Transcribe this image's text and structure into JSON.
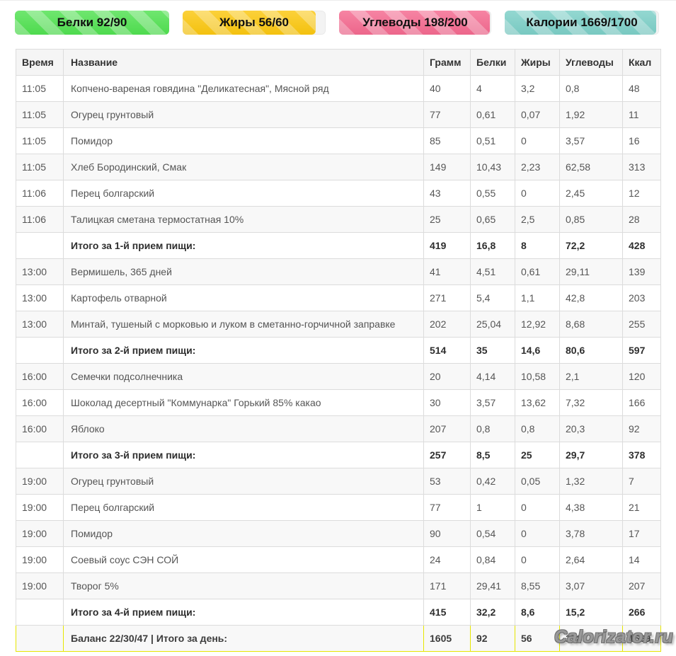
{
  "summary": {
    "badges": [
      {
        "name": "protein",
        "label": "Белки 92/90",
        "value": 92,
        "goal": 90,
        "percent": 100,
        "color": "#50e150"
      },
      {
        "name": "fat",
        "label": "Жиры 56/60",
        "value": 56,
        "goal": 60,
        "percent": 93,
        "color": "#fbc70f"
      },
      {
        "name": "carbs",
        "label": "Углеводы 198/200",
        "value": 198,
        "goal": 200,
        "percent": 99,
        "color": "#f4698f"
      },
      {
        "name": "calories",
        "label": "Калории 1669/1700",
        "value": 1669,
        "goal": 1700,
        "percent": 98,
        "color": "#7ccfc7"
      }
    ],
    "track_color": "#f3f3f3"
  },
  "table": {
    "columns": [
      "Время",
      "Название",
      "Грамм",
      "Белки",
      "Жиры",
      "Углеводы",
      "Ккал"
    ],
    "rows": [
      {
        "type": "item",
        "time": "11:05",
        "name": "Копчено-вареная говядина \"Деликатесная\", Мясной ряд",
        "grams": "40",
        "protein": "4",
        "fat": "3,2",
        "carbs": "0,8",
        "kcal": "48"
      },
      {
        "type": "item",
        "time": "11:05",
        "name": "Огурец грунтовый",
        "grams": "77",
        "protein": "0,61",
        "fat": "0,07",
        "carbs": "1,92",
        "kcal": "11"
      },
      {
        "type": "item",
        "time": "11:05",
        "name": "Помидор",
        "grams": "85",
        "protein": "0,51",
        "fat": "0",
        "carbs": "3,57",
        "kcal": "16"
      },
      {
        "type": "item",
        "time": "11:05",
        "name": "Хлеб Бородинский, Смак",
        "grams": "149",
        "protein": "10,43",
        "fat": "2,23",
        "carbs": "62,58",
        "kcal": "313"
      },
      {
        "type": "item",
        "time": "11:06",
        "name": "Перец болгарский",
        "grams": "43",
        "protein": "0,55",
        "fat": "0",
        "carbs": "2,45",
        "kcal": "12"
      },
      {
        "type": "item",
        "time": "11:06",
        "name": "Талицкая сметана термостатная 10%",
        "grams": "25",
        "protein": "0,65",
        "fat": "2,5",
        "carbs": "0,85",
        "kcal": "28"
      },
      {
        "type": "subtotal",
        "time": "",
        "name": "Итого за 1-й прием пищи:",
        "grams": "419",
        "protein": "16,8",
        "fat": "8",
        "carbs": "72,2",
        "kcal": "428"
      },
      {
        "type": "item",
        "time": "13:00",
        "name": "Вермишель, 365 дней",
        "grams": "41",
        "protein": "4,51",
        "fat": "0,61",
        "carbs": "29,11",
        "kcal": "139"
      },
      {
        "type": "item",
        "time": "13:00",
        "name": "Картофель отварной",
        "grams": "271",
        "protein": "5,4",
        "fat": "1,1",
        "carbs": "42,8",
        "kcal": "203"
      },
      {
        "type": "item",
        "time": "13:00",
        "name": "Минтай, тушеный с морковью и луком в сметанно-горчичной заправке",
        "grams": "202",
        "protein": "25,04",
        "fat": "12,92",
        "carbs": "8,68",
        "kcal": "255"
      },
      {
        "type": "subtotal",
        "time": "",
        "name": "Итого за 2-й прием пищи:",
        "grams": "514",
        "protein": "35",
        "fat": "14,6",
        "carbs": "80,6",
        "kcal": "597"
      },
      {
        "type": "item",
        "time": "16:00",
        "name": "Семечки подсолнечника",
        "grams": "20",
        "protein": "4,14",
        "fat": "10,58",
        "carbs": "2,1",
        "kcal": "120"
      },
      {
        "type": "item",
        "time": "16:00",
        "name": "Шоколад десертный \"Коммунарка\" Горький 85% какао",
        "grams": "30",
        "protein": "3,57",
        "fat": "13,62",
        "carbs": "7,32",
        "kcal": "166"
      },
      {
        "type": "item",
        "time": "16:00",
        "name": "Яблоко",
        "grams": "207",
        "protein": "0,8",
        "fat": "0,8",
        "carbs": "20,3",
        "kcal": "92"
      },
      {
        "type": "subtotal",
        "time": "",
        "name": "Итого за 3-й прием пищи:",
        "grams": "257",
        "protein": "8,5",
        "fat": "25",
        "carbs": "29,7",
        "kcal": "378"
      },
      {
        "type": "item",
        "time": "19:00",
        "name": "Огурец грунтовый",
        "grams": "53",
        "protein": "0,42",
        "fat": "0,05",
        "carbs": "1,32",
        "kcal": "7"
      },
      {
        "type": "item",
        "time": "19:00",
        "name": "Перец болгарский",
        "grams": "77",
        "protein": "1",
        "fat": "0",
        "carbs": "4,38",
        "kcal": "21"
      },
      {
        "type": "item",
        "time": "19:00",
        "name": "Помидор",
        "grams": "90",
        "protein": "0,54",
        "fat": "0",
        "carbs": "3,78",
        "kcal": "17"
      },
      {
        "type": "item",
        "time": "19:00",
        "name": "Соевый соус СЭН СОЙ",
        "grams": "24",
        "protein": "0,84",
        "fat": "0",
        "carbs": "2,64",
        "kcal": "14"
      },
      {
        "type": "item",
        "time": "19:00",
        "name": "Творог 5%",
        "grams": "171",
        "protein": "29,41",
        "fat": "8,55",
        "carbs": "3,07",
        "kcal": "207"
      },
      {
        "type": "subtotal",
        "time": "",
        "name": "Итого за 4-й прием пищи:",
        "grams": "415",
        "protein": "32,2",
        "fat": "8,6",
        "carbs": "15,2",
        "kcal": "266"
      },
      {
        "type": "total",
        "time": "",
        "name": "Баланс 22/30/47 | Итого за день:",
        "grams": "1605",
        "protein": "92",
        "fat": "56",
        "carbs": "198",
        "kcal": "1669"
      }
    ],
    "total_row_color": "#ffff00"
  },
  "watermark": "Calorizator.ru"
}
